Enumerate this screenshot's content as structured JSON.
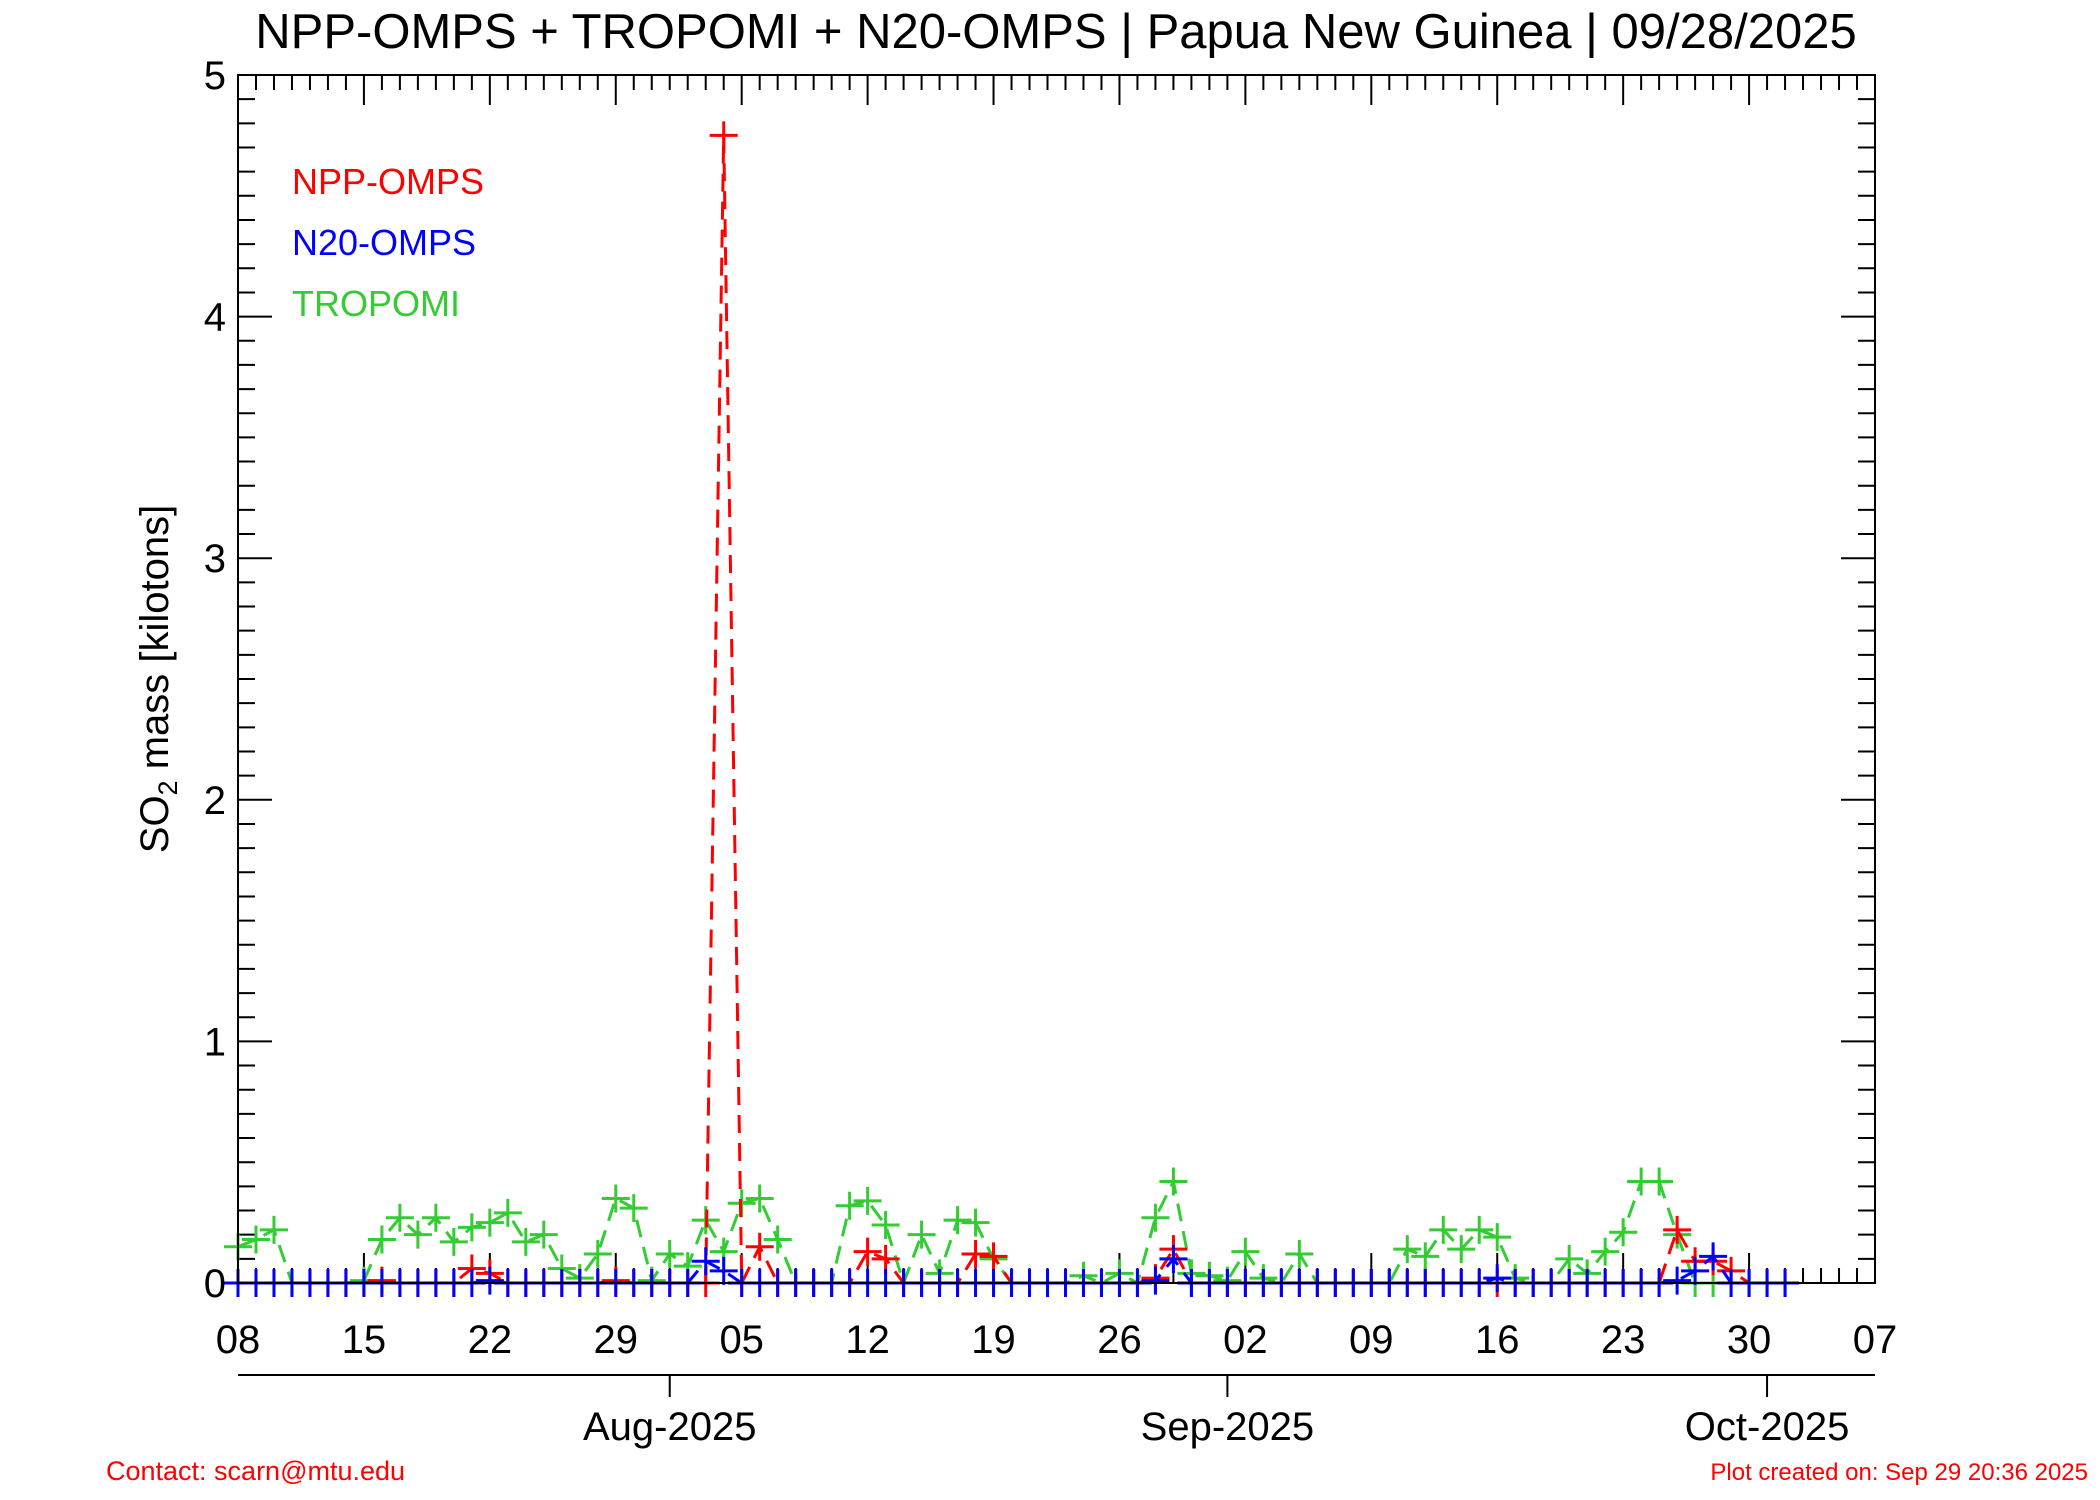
{
  "footer": {
    "contact": "Contact: scarn@mtu.edu",
    "created": "Plot created on: Sep 29 20:36 2025"
  },
  "colors": {
    "npp": "#ff0000",
    "n20": "#0000ff",
    "tropomi": "#33cc33",
    "footer": "#ff0000",
    "axis": "#000000"
  },
  "chart_data": {
    "type": "line",
    "title": "NPP-OMPS + TROPOMI + N20-OMPS | Papua New Guinea | 09/28/2025",
    "ylabel_main": "SO",
    "ylabel_sub": "2",
    "ylabel_rest": " mass [kilotons]",
    "ylim": [
      0,
      5
    ],
    "yticks": [
      0,
      1,
      2,
      3,
      4,
      5
    ],
    "xlim": [
      "2025-07-08",
      "2025-10-07"
    ],
    "xtick_labels": [
      {
        "date": "2025-07-08",
        "label": "08"
      },
      {
        "date": "2025-07-15",
        "label": "15"
      },
      {
        "date": "2025-07-22",
        "label": "22"
      },
      {
        "date": "2025-07-29",
        "label": "29"
      },
      {
        "date": "2025-08-05",
        "label": "05"
      },
      {
        "date": "2025-08-12",
        "label": "12"
      },
      {
        "date": "2025-08-19",
        "label": "19"
      },
      {
        "date": "2025-08-26",
        "label": "26"
      },
      {
        "date": "2025-09-02",
        "label": "02"
      },
      {
        "date": "2025-09-09",
        "label": "09"
      },
      {
        "date": "2025-09-16",
        "label": "16"
      },
      {
        "date": "2025-09-23",
        "label": "23"
      },
      {
        "date": "2025-09-30",
        "label": "30"
      },
      {
        "date": "2025-10-07",
        "label": "07"
      }
    ],
    "month_labels": [
      {
        "date": "2025-08-01",
        "label": "Aug-2025"
      },
      {
        "date": "2025-09-01",
        "label": "Sep-2025"
      },
      {
        "date": "2025-10-01",
        "label": "Oct-2025"
      }
    ],
    "legend_position": "top-left",
    "grid": false,
    "series": [
      {
        "name": "NPP-OMPS",
        "color": "#ff0000",
        "points": [
          [
            "2025-07-08",
            0.0
          ],
          [
            "2025-07-09",
            0.0
          ],
          [
            "2025-07-10",
            0.0
          ],
          [
            "2025-07-11",
            0.0
          ],
          [
            "2025-07-12",
            0.0
          ],
          [
            "2025-07-13",
            0.0
          ],
          [
            "2025-07-14",
            0.0
          ],
          [
            "2025-07-15",
            0.0
          ],
          [
            "2025-07-16",
            0.01
          ],
          [
            "2025-07-17",
            0.0
          ],
          [
            "2025-07-18",
            0.0
          ],
          [
            "2025-07-19",
            0.0
          ],
          [
            "2025-07-20",
            0.0
          ],
          [
            "2025-07-21",
            0.06
          ],
          [
            "2025-07-22",
            0.04
          ],
          [
            "2025-07-23",
            0.0
          ],
          [
            "2025-07-24",
            0.0
          ],
          [
            "2025-07-25",
            0.0
          ],
          [
            "2025-07-26",
            0.0
          ],
          [
            "2025-07-27",
            0.0
          ],
          [
            "2025-07-28",
            0.0
          ],
          [
            "2025-07-29",
            0.01
          ],
          [
            "2025-07-30",
            0.0
          ],
          [
            "2025-07-31",
            0.0
          ],
          [
            "2025-08-01",
            0.0
          ],
          [
            "2025-08-02",
            0.0
          ],
          [
            "2025-08-03",
            0.0
          ],
          [
            "2025-08-04",
            4.75
          ],
          [
            "2025-08-05",
            0.0
          ],
          [
            "2025-08-06",
            0.15
          ],
          [
            "2025-08-07",
            0.0
          ],
          [
            "2025-08-08",
            0.0
          ],
          [
            "2025-08-09",
            0.0
          ],
          [
            "2025-08-10",
            0.0
          ],
          [
            "2025-08-11",
            0.0
          ],
          [
            "2025-08-12",
            0.13
          ],
          [
            "2025-08-13",
            0.1
          ],
          [
            "2025-08-14",
            0.0
          ],
          [
            "2025-08-15",
            0.0
          ],
          [
            "2025-08-16",
            0.0
          ],
          [
            "2025-08-17",
            0.0
          ],
          [
            "2025-08-18",
            0.12
          ],
          [
            "2025-08-19",
            0.11
          ],
          [
            "2025-08-20",
            0.0
          ],
          [
            "2025-08-21",
            0.0
          ],
          [
            "2025-08-22",
            0.0
          ],
          [
            "2025-08-23",
            0.0
          ],
          [
            "2025-08-24",
            0.0
          ],
          [
            "2025-08-25",
            0.0
          ],
          [
            "2025-08-26",
            0.0
          ],
          [
            "2025-08-27",
            0.0
          ],
          [
            "2025-08-28",
            0.02
          ],
          [
            "2025-08-29",
            0.14
          ],
          [
            "2025-08-30",
            0.0
          ],
          [
            "2025-08-31",
            0.0
          ],
          [
            "2025-09-01",
            0.0
          ],
          [
            "2025-09-02",
            0.0
          ],
          [
            "2025-09-03",
            0.0
          ],
          [
            "2025-09-04",
            0.0
          ],
          [
            "2025-09-05",
            0.0
          ],
          [
            "2025-09-06",
            0.0
          ],
          [
            "2025-09-07",
            0.0
          ],
          [
            "2025-09-08",
            0.0
          ],
          [
            "2025-09-09",
            0.0
          ],
          [
            "2025-09-10",
            0.0
          ],
          [
            "2025-09-11",
            0.0
          ],
          [
            "2025-09-12",
            0.0
          ],
          [
            "2025-09-13",
            0.0
          ],
          [
            "2025-09-14",
            0.0
          ],
          [
            "2025-09-15",
            0.0
          ],
          [
            "2025-09-16",
            0.0
          ],
          [
            "2025-09-17",
            0.0
          ],
          [
            "2025-09-18",
            0.0
          ],
          [
            "2025-09-19",
            0.0
          ],
          [
            "2025-09-20",
            0.0
          ],
          [
            "2025-09-21",
            0.0
          ],
          [
            "2025-09-22",
            0.0
          ],
          [
            "2025-09-23",
            0.0
          ],
          [
            "2025-09-24",
            0.0
          ],
          [
            "2025-09-25",
            0.0
          ],
          [
            "2025-09-26",
            0.22
          ],
          [
            "2025-09-27",
            0.09
          ],
          [
            "2025-09-28",
            0.09
          ],
          [
            "2025-09-29",
            0.05
          ],
          [
            "2025-09-30",
            0.0
          ],
          [
            "2025-10-01",
            0.0
          ],
          [
            "2025-10-02",
            0.0
          ]
        ]
      },
      {
        "name": "N20-OMPS",
        "color": "#0000ff",
        "points": [
          [
            "2025-07-08",
            0.0
          ],
          [
            "2025-07-09",
            0.0
          ],
          [
            "2025-07-10",
            0.0
          ],
          [
            "2025-07-11",
            0.0
          ],
          [
            "2025-07-12",
            0.0
          ],
          [
            "2025-07-13",
            0.0
          ],
          [
            "2025-07-14",
            0.0
          ],
          [
            "2025-07-15",
            0.0
          ],
          [
            "2025-07-16",
            0.0
          ],
          [
            "2025-07-17",
            0.0
          ],
          [
            "2025-07-18",
            0.0
          ],
          [
            "2025-07-19",
            0.0
          ],
          [
            "2025-07-20",
            0.0
          ],
          [
            "2025-07-21",
            0.0
          ],
          [
            "2025-07-22",
            0.01
          ],
          [
            "2025-07-23",
            0.0
          ],
          [
            "2025-07-24",
            0.0
          ],
          [
            "2025-07-25",
            0.0
          ],
          [
            "2025-07-26",
            0.0
          ],
          [
            "2025-07-27",
            0.0
          ],
          [
            "2025-07-28",
            0.0
          ],
          [
            "2025-07-29",
            0.0
          ],
          [
            "2025-07-30",
            0.0
          ],
          [
            "2025-07-31",
            0.0
          ],
          [
            "2025-08-01",
            0.0
          ],
          [
            "2025-08-02",
            0.0
          ],
          [
            "2025-08-03",
            0.09
          ],
          [
            "2025-08-04",
            0.05
          ],
          [
            "2025-08-05",
            0.0
          ],
          [
            "2025-08-06",
            0.0
          ],
          [
            "2025-08-07",
            0.0
          ],
          [
            "2025-08-08",
            0.0
          ],
          [
            "2025-08-09",
            0.0
          ],
          [
            "2025-08-10",
            0.0
          ],
          [
            "2025-08-11",
            0.0
          ],
          [
            "2025-08-12",
            0.0
          ],
          [
            "2025-08-13",
            0.0
          ],
          [
            "2025-08-14",
            0.0
          ],
          [
            "2025-08-15",
            0.0
          ],
          [
            "2025-08-16",
            0.0
          ],
          [
            "2025-08-17",
            0.0
          ],
          [
            "2025-08-18",
            0.0
          ],
          [
            "2025-08-19",
            0.0
          ],
          [
            "2025-08-20",
            0.0
          ],
          [
            "2025-08-21",
            0.0
          ],
          [
            "2025-08-22",
            0.0
          ],
          [
            "2025-08-23",
            0.0
          ],
          [
            "2025-08-24",
            0.0
          ],
          [
            "2025-08-25",
            0.0
          ],
          [
            "2025-08-26",
            0.0
          ],
          [
            "2025-08-27",
            0.0
          ],
          [
            "2025-08-28",
            0.01
          ],
          [
            "2025-08-29",
            0.1
          ],
          [
            "2025-08-30",
            0.0
          ],
          [
            "2025-08-31",
            0.0
          ],
          [
            "2025-09-01",
            0.0
          ],
          [
            "2025-09-02",
            0.0
          ],
          [
            "2025-09-03",
            0.0
          ],
          [
            "2025-09-04",
            0.0
          ],
          [
            "2025-09-05",
            0.0
          ],
          [
            "2025-09-06",
            0.0
          ],
          [
            "2025-09-07",
            0.0
          ],
          [
            "2025-09-08",
            0.0
          ],
          [
            "2025-09-09",
            0.0
          ],
          [
            "2025-09-10",
            0.0
          ],
          [
            "2025-09-11",
            0.0
          ],
          [
            "2025-09-12",
            0.0
          ],
          [
            "2025-09-13",
            0.0
          ],
          [
            "2025-09-14",
            0.0
          ],
          [
            "2025-09-15",
            0.0
          ],
          [
            "2025-09-16",
            0.02
          ],
          [
            "2025-09-17",
            0.0
          ],
          [
            "2025-09-18",
            0.0
          ],
          [
            "2025-09-19",
            0.0
          ],
          [
            "2025-09-20",
            0.0
          ],
          [
            "2025-09-21",
            0.0
          ],
          [
            "2025-09-22",
            0.0
          ],
          [
            "2025-09-23",
            0.0
          ],
          [
            "2025-09-24",
            0.0
          ],
          [
            "2025-09-25",
            0.0
          ],
          [
            "2025-09-26",
            0.01
          ],
          [
            "2025-09-27",
            0.05
          ],
          [
            "2025-09-28",
            0.11
          ],
          [
            "2025-09-29",
            0.0
          ],
          [
            "2025-09-30",
            0.0
          ],
          [
            "2025-10-01",
            0.0
          ],
          [
            "2025-10-02",
            0.0
          ]
        ]
      },
      {
        "name": "TROPOMI",
        "color": "#33cc33",
        "points": [
          [
            "2025-07-08",
            0.15
          ],
          [
            "2025-07-09",
            0.18
          ],
          [
            "2025-07-10",
            0.22
          ],
          [
            "2025-07-11",
            0.0
          ],
          [
            "2025-07-12",
            0.0
          ],
          [
            "2025-07-13",
            0.0
          ],
          [
            "2025-07-14",
            0.0
          ],
          [
            "2025-07-15",
            0.01
          ],
          [
            "2025-07-16",
            0.18
          ],
          [
            "2025-07-17",
            0.27
          ],
          [
            "2025-07-18",
            0.2
          ],
          [
            "2025-07-19",
            0.27
          ],
          [
            "2025-07-20",
            0.17
          ],
          [
            "2025-07-21",
            0.23
          ],
          [
            "2025-07-22",
            0.25
          ],
          [
            "2025-07-23",
            0.29
          ],
          [
            "2025-07-24",
            0.17
          ],
          [
            "2025-07-25",
            0.2
          ],
          [
            "2025-07-26",
            0.06
          ],
          [
            "2025-07-27",
            0.02
          ],
          [
            "2025-07-28",
            0.12
          ],
          [
            "2025-07-29",
            0.35
          ],
          [
            "2025-07-30",
            0.31
          ],
          [
            "2025-07-31",
            0.01
          ],
          [
            "2025-08-01",
            0.12
          ],
          [
            "2025-08-02",
            0.07
          ],
          [
            "2025-08-03",
            0.26
          ],
          [
            "2025-08-04",
            0.13
          ],
          [
            "2025-08-05",
            0.33
          ],
          [
            "2025-08-06",
            0.35
          ],
          [
            "2025-08-07",
            0.18
          ],
          [
            "2025-08-08",
            0.0
          ],
          [
            "2025-08-09",
            0.0
          ],
          [
            "2025-08-10",
            0.0
          ],
          [
            "2025-08-11",
            0.32
          ],
          [
            "2025-08-12",
            0.34
          ],
          [
            "2025-08-13",
            0.24
          ],
          [
            "2025-08-14",
            0.0
          ],
          [
            "2025-08-15",
            0.2
          ],
          [
            "2025-08-16",
            0.04
          ],
          [
            "2025-08-17",
            0.26
          ],
          [
            "2025-08-18",
            0.25
          ],
          [
            "2025-08-19",
            0.1
          ],
          [
            "2025-08-20",
            0.0
          ],
          [
            "2025-08-21",
            0.0
          ],
          [
            "2025-08-22",
            0.0
          ],
          [
            "2025-08-23",
            0.0
          ],
          [
            "2025-08-24",
            0.03
          ],
          [
            "2025-08-25",
            0.0
          ],
          [
            "2025-08-26",
            0.04
          ],
          [
            "2025-08-27",
            0.0
          ],
          [
            "2025-08-28",
            0.27
          ],
          [
            "2025-08-29",
            0.42
          ],
          [
            "2025-08-30",
            0.04
          ],
          [
            "2025-08-31",
            0.03
          ],
          [
            "2025-09-01",
            0.01
          ],
          [
            "2025-09-02",
            0.13
          ],
          [
            "2025-09-03",
            0.02
          ],
          [
            "2025-09-04",
            0.0
          ],
          [
            "2025-09-05",
            0.12
          ],
          [
            "2025-09-06",
            0.0
          ],
          [
            "2025-09-07",
            0.0
          ],
          [
            "2025-09-08",
            0.0
          ],
          [
            "2025-09-09",
            0.0
          ],
          [
            "2025-09-10",
            0.0
          ],
          [
            "2025-09-11",
            0.14
          ],
          [
            "2025-09-12",
            0.11
          ],
          [
            "2025-09-13",
            0.22
          ],
          [
            "2025-09-14",
            0.14
          ],
          [
            "2025-09-15",
            0.22
          ],
          [
            "2025-09-16",
            0.19
          ],
          [
            "2025-09-17",
            0.02
          ],
          [
            "2025-09-18",
            0.0
          ],
          [
            "2025-09-19",
            0.0
          ],
          [
            "2025-09-20",
            0.1
          ],
          [
            "2025-09-21",
            0.04
          ],
          [
            "2025-09-22",
            0.13
          ],
          [
            "2025-09-23",
            0.21
          ],
          [
            "2025-09-24",
            0.42
          ],
          [
            "2025-09-25",
            0.42
          ],
          [
            "2025-09-26",
            0.2
          ],
          [
            "2025-09-27",
            0.0
          ],
          [
            "2025-09-28",
            0.0
          ],
          [
            "2025-09-29",
            0.0
          ],
          [
            "2025-09-30",
            0.0
          ],
          [
            "2025-10-01",
            0.0
          ],
          [
            "2025-10-02",
            0.0
          ]
        ]
      }
    ]
  }
}
